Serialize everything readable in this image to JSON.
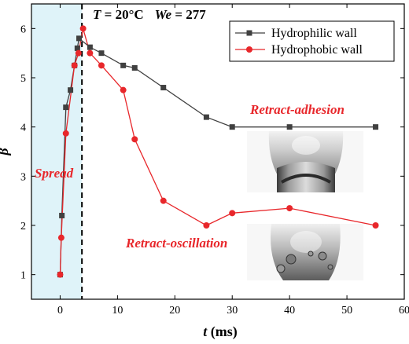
{
  "chart_data": {
    "type": "line",
    "title": "",
    "xlabel_var": "t",
    "xlabel_unit": " (ms)",
    "ylabel": "β",
    "xlim": [
      -5,
      60
    ],
    "ylim": [
      0.5,
      6.5
    ],
    "x_ticks": [
      0,
      10,
      20,
      30,
      40,
      50,
      60
    ],
    "y_ticks": [
      1,
      2,
      3,
      4,
      5,
      6
    ],
    "grid": false,
    "legend_position": "top-right",
    "series": [
      {
        "name": "Hydrophilic wall",
        "color": "#404040",
        "marker": "square",
        "x": [
          0,
          0.3,
          1,
          1.8,
          2.5,
          3.0,
          3.3,
          5.2,
          7.2,
          11,
          13,
          18,
          25.5,
          30,
          40,
          55
        ],
        "y": [
          1.0,
          2.2,
          4.4,
          4.75,
          5.25,
          5.6,
          5.8,
          5.62,
          5.5,
          5.25,
          5.2,
          4.8,
          4.2,
          4.0,
          4.0,
          4.0
        ]
      },
      {
        "name": "Hydrophobic wall",
        "color": "#e8272b",
        "marker": "circle",
        "x": [
          0,
          0.2,
          1,
          2.5,
          3.2,
          4.0,
          5.2,
          7.2,
          11,
          13,
          18,
          25.5,
          30,
          40,
          55
        ],
        "y": [
          1.0,
          1.75,
          3.87,
          5.25,
          5.5,
          6.0,
          5.5,
          5.25,
          4.75,
          3.75,
          2.5,
          2.0,
          2.25,
          2.35,
          2.0
        ]
      }
    ],
    "regions": {
      "spread_x_end": 3.8,
      "spread_fill": "#dff3f9"
    },
    "annotations": {
      "condition_T_var": "T",
      "condition_T_value": " = 20°C",
      "condition_We_var": "We",
      "condition_We_value": " = 277",
      "spread": "Spread",
      "retract_adhesion": "Retract-adhesion",
      "retract_oscillation": "Retract-oscillation",
      "annotation_color": "#e8272b"
    }
  }
}
